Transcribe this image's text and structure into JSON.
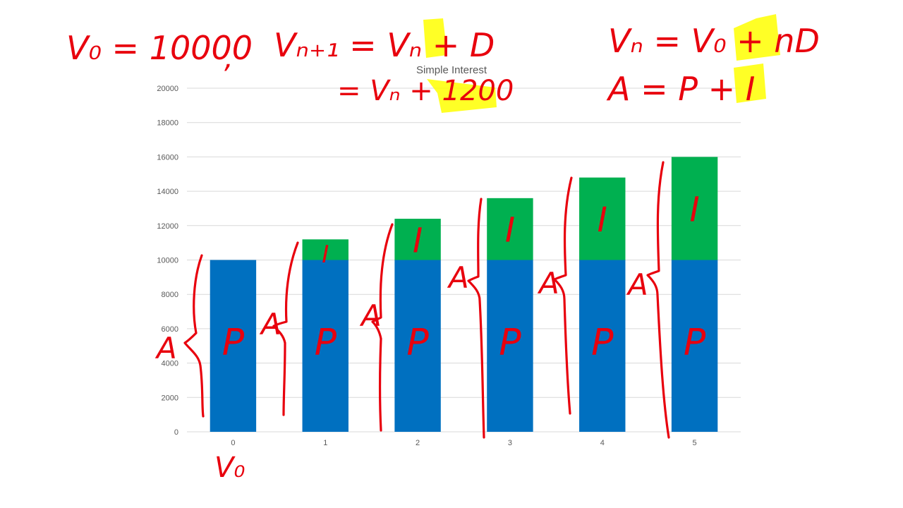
{
  "chart_data": {
    "type": "bar",
    "stacked": true,
    "title": "Simple Interest",
    "categories": [
      "0",
      "1",
      "2",
      "3",
      "4",
      "5"
    ],
    "series": [
      {
        "name": "",
        "color": "#0070c0",
        "values": [
          10000,
          10000,
          10000,
          10000,
          10000,
          10000
        ]
      },
      {
        "name": "",
        "color": "#00b050",
        "values": [
          0,
          1200,
          2400,
          3600,
          4800,
          6000
        ]
      }
    ],
    "ylim": [
      0,
      20000
    ],
    "yticks": [
      0,
      2000,
      4000,
      6000,
      8000,
      10000,
      12000,
      14000,
      16000,
      18000,
      20000
    ],
    "grid": true,
    "legend": "none",
    "xlabel": "",
    "ylabel": ""
  },
  "annotations": {
    "eq_v0": "V₀ = 10000",
    "comma": ",",
    "eq_recur_1": "Vₙ₊₁ = Vₙ + D",
    "eq_recur_2": "= Vₙ + 1200",
    "eq_explicit": "Vₙ = V₀ + nD",
    "eq_amount": "A = P + I",
    "principal_letter": "P",
    "interest_letter": "I",
    "amount_letter": "A",
    "below_axis": "V₀",
    "highlight_color": "#ffff00",
    "ink_color": "#e8000d"
  }
}
